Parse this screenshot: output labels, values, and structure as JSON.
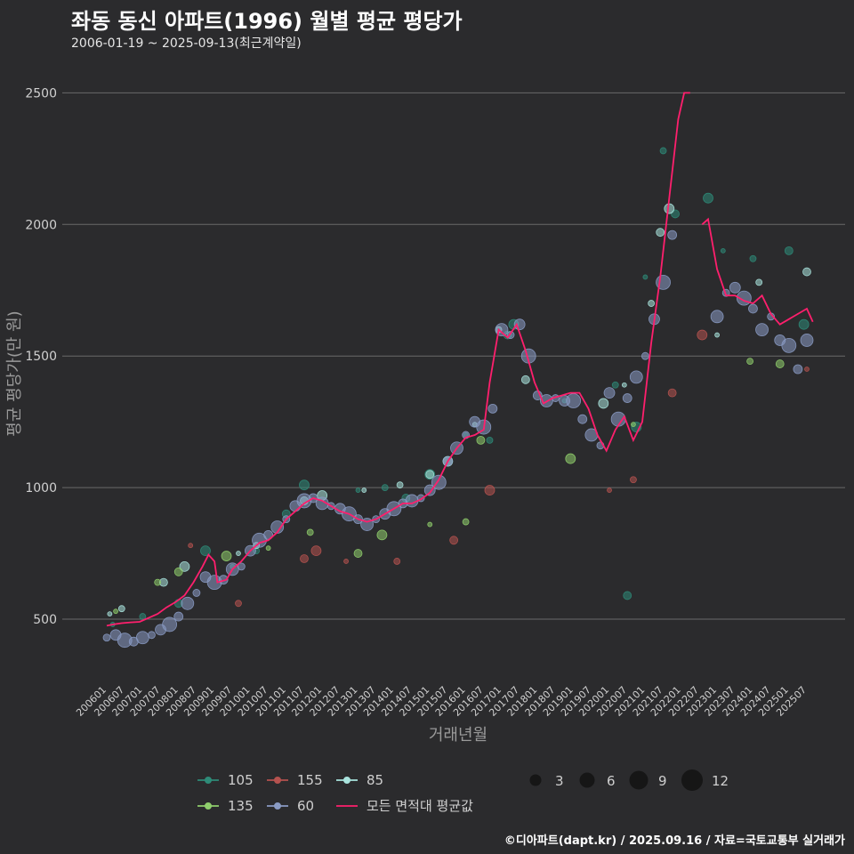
{
  "header": {
    "title": "좌동 동신 아파트(1996) 월별 평균 평당가",
    "subtitle": "2006-01-19 ~ 2025-09-13(최근계약일)"
  },
  "caption": "©디아파트(dapt.kr) / 2025.09.16 / 자료=국토교통부 실거래가",
  "colors": {
    "background": "#2b2b2d",
    "grid": "#6a6a6a",
    "s105": "#2e8b78",
    "s135": "#8fce6c",
    "s155": "#b5524f",
    "s60": "#8a9bc4",
    "s85": "#a9e3dd",
    "avg": "#ff1f6d"
  },
  "chart_data": {
    "type": "scatter",
    "xlabel": "거래년월",
    "ylabel": "평균 평당가(만 원)",
    "ylim": [
      250,
      2650
    ],
    "yticks": [
      500,
      1000,
      1500,
      2000,
      2500
    ],
    "grid": true,
    "xticks": [
      "200601",
      "200607",
      "200701",
      "200707",
      "200801",
      "200807",
      "200901",
      "200907",
      "201001",
      "201007",
      "201101",
      "201107",
      "201201",
      "201207",
      "201301",
      "201307",
      "201401",
      "201407",
      "201501",
      "201507",
      "201601",
      "201607",
      "201701",
      "201707",
      "201801",
      "201807",
      "201901",
      "201907",
      "202001",
      "202007",
      "202101",
      "202107",
      "202201",
      "202207",
      "202301",
      "202307",
      "202401",
      "202407",
      "202501",
      "202507"
    ],
    "legend": {
      "placement": "bottom",
      "series_labels": [
        "105",
        "155",
        "85",
        "135",
        "60",
        "모든 면적대 평균값"
      ],
      "size_labels": [
        "3",
        "6",
        "9",
        "12"
      ],
      "size_values": [
        3,
        6,
        9,
        12
      ]
    },
    "series": [
      {
        "name": "105",
        "points": [
          [
            "200603",
            480
          ],
          [
            "200701",
            510
          ],
          [
            "200801",
            560
          ],
          [
            "200810",
            760
          ],
          [
            "200907",
            700
          ],
          [
            "201003",
            760
          ],
          [
            "201101",
            900
          ],
          [
            "201107",
            1010
          ],
          [
            "201301",
            990
          ],
          [
            "201310",
            1000
          ],
          [
            "201405",
            960
          ],
          [
            "201501",
            1050
          ],
          [
            "201601",
            1200
          ],
          [
            "201609",
            1180
          ],
          [
            "201703",
            1580
          ],
          [
            "201705",
            1620
          ],
          [
            "201810",
            1330
          ],
          [
            "202003",
            1390
          ],
          [
            "202007",
            590
          ],
          [
            "202010",
            1230
          ],
          [
            "202101",
            1800
          ],
          [
            "202107",
            2280
          ],
          [
            "202111",
            2040
          ],
          [
            "202210",
            2100
          ],
          [
            "202303",
            1900
          ],
          [
            "202401",
            1870
          ],
          [
            "202501",
            1900
          ],
          [
            "202506",
            1620
          ]
        ]
      },
      {
        "name": "155",
        "points": [
          [
            "200805",
            780
          ],
          [
            "200909",
            560
          ],
          [
            "201107",
            730
          ],
          [
            "201111",
            760
          ],
          [
            "201209",
            720
          ],
          [
            "201402",
            720
          ],
          [
            "201509",
            800
          ],
          [
            "201609",
            990
          ],
          [
            "202001",
            990
          ],
          [
            "202009",
            1030
          ],
          [
            "202110",
            1360
          ],
          [
            "202208",
            1580
          ],
          [
            "202507",
            1450
          ]
        ]
      },
      {
        "name": "85",
        "points": [
          [
            "200602",
            520
          ],
          [
            "200606",
            540
          ],
          [
            "200708",
            640
          ],
          [
            "200803",
            700
          ],
          [
            "200909",
            750
          ],
          [
            "201003",
            780
          ],
          [
            "201107",
            950
          ],
          [
            "201201",
            970
          ],
          [
            "201303",
            990
          ],
          [
            "201403",
            1010
          ],
          [
            "201501",
            1050
          ],
          [
            "201507",
            1100
          ],
          [
            "201604",
            1240
          ],
          [
            "201612",
            1600
          ],
          [
            "201709",
            1410
          ],
          [
            "201911",
            1320
          ],
          [
            "202006",
            1390
          ],
          [
            "202103",
            1700
          ],
          [
            "202106",
            1970
          ],
          [
            "202109",
            2060
          ],
          [
            "202301",
            1580
          ],
          [
            "202403",
            1780
          ],
          [
            "202507",
            1820
          ]
        ]
      },
      {
        "name": "135",
        "points": [
          [
            "200604",
            530
          ],
          [
            "200706",
            640
          ],
          [
            "200801",
            680
          ],
          [
            "200905",
            740
          ],
          [
            "201007",
            770
          ],
          [
            "201109",
            830
          ],
          [
            "201301",
            750
          ],
          [
            "201309",
            820
          ],
          [
            "201501",
            860
          ],
          [
            "201601",
            870
          ],
          [
            "201606",
            1180
          ],
          [
            "201812",
            1110
          ],
          [
            "202009",
            1240
          ],
          [
            "202312",
            1480
          ],
          [
            "202410",
            1470
          ]
        ]
      },
      {
        "name": "60",
        "points": [
          [
            "200601",
            430
          ],
          [
            "200604",
            440
          ],
          [
            "200607",
            420
          ],
          [
            "200610",
            415
          ],
          [
            "200701",
            430
          ],
          [
            "200704",
            440
          ],
          [
            "200707",
            460
          ],
          [
            "200710",
            480
          ],
          [
            "200801",
            510
          ],
          [
            "200804",
            560
          ],
          [
            "200807",
            600
          ],
          [
            "200810",
            660
          ],
          [
            "200901",
            640
          ],
          [
            "200904",
            650
          ],
          [
            "200907",
            690
          ],
          [
            "200910",
            700
          ],
          [
            "201001",
            760
          ],
          [
            "201004",
            800
          ],
          [
            "201007",
            820
          ],
          [
            "201010",
            850
          ],
          [
            "201101",
            880
          ],
          [
            "201104",
            930
          ],
          [
            "201107",
            950
          ],
          [
            "201110",
            960
          ],
          [
            "201201",
            940
          ],
          [
            "201204",
            930
          ],
          [
            "201207",
            920
          ],
          [
            "201210",
            900
          ],
          [
            "201301",
            880
          ],
          [
            "201304",
            860
          ],
          [
            "201307",
            880
          ],
          [
            "201310",
            900
          ],
          [
            "201401",
            920
          ],
          [
            "201404",
            940
          ],
          [
            "201407",
            950
          ],
          [
            "201410",
            960
          ],
          [
            "201501",
            990
          ],
          [
            "201504",
            1020
          ],
          [
            "201507",
            1100
          ],
          [
            "201510",
            1150
          ],
          [
            "201601",
            1200
          ],
          [
            "201604",
            1250
          ],
          [
            "201607",
            1230
          ],
          [
            "201610",
            1300
          ],
          [
            "201701",
            1600
          ],
          [
            "201704",
            1580
          ],
          [
            "201707",
            1620
          ],
          [
            "201710",
            1500
          ],
          [
            "201801",
            1350
          ],
          [
            "201804",
            1330
          ],
          [
            "201807",
            1340
          ],
          [
            "201810",
            1330
          ],
          [
            "201901",
            1330
          ],
          [
            "201904",
            1260
          ],
          [
            "201907",
            1200
          ],
          [
            "201910",
            1160
          ],
          [
            "202001",
            1360
          ],
          [
            "202004",
            1260
          ],
          [
            "202007",
            1340
          ],
          [
            "202010",
            1420
          ],
          [
            "202101",
            1500
          ],
          [
            "202104",
            1640
          ],
          [
            "202107",
            1780
          ],
          [
            "202110",
            1960
          ],
          [
            "202301",
            1650
          ],
          [
            "202304",
            1740
          ],
          [
            "202307",
            1760
          ],
          [
            "202310",
            1720
          ],
          [
            "202401",
            1680
          ],
          [
            "202404",
            1600
          ],
          [
            "202407",
            1650
          ],
          [
            "202410",
            1560
          ],
          [
            "202501",
            1540
          ],
          [
            "202504",
            1450
          ],
          [
            "202507",
            1560
          ]
        ]
      }
    ],
    "average_series": {
      "name": "모든 면적대 평균값",
      "points": [
        [
          "200601",
          475
        ],
        [
          "200603",
          480
        ],
        [
          "200606",
          485
        ],
        [
          "200609",
          488
        ],
        [
          "200612",
          490
        ],
        [
          "200703",
          505
        ],
        [
          "200706",
          520
        ],
        [
          "200709",
          545
        ],
        [
          "200712",
          565
        ],
        [
          "200803",
          590
        ],
        [
          "200806",
          640
        ],
        [
          "200809",
          700
        ],
        [
          "200811",
          745
        ],
        [
          "200901",
          720
        ],
        [
          "200902",
          640
        ],
        [
          "200905",
          650
        ],
        [
          "200907",
          690
        ],
        [
          "200910",
          720
        ],
        [
          "201001",
          760
        ],
        [
          "201004",
          790
        ],
        [
          "201007",
          800
        ],
        [
          "201010",
          830
        ],
        [
          "201101",
          880
        ],
        [
          "201104",
          910
        ],
        [
          "201107",
          940
        ],
        [
          "201110",
          960
        ],
        [
          "201201",
          950
        ],
        [
          "201204",
          930
        ],
        [
          "201207",
          910
        ],
        [
          "201210",
          900
        ],
        [
          "201301",
          880
        ],
        [
          "201304",
          870
        ],
        [
          "201307",
          880
        ],
        [
          "201310",
          900
        ],
        [
          "201401",
          920
        ],
        [
          "201404",
          940
        ],
        [
          "201407",
          940
        ],
        [
          "201410",
          955
        ],
        [
          "201501",
          980
        ],
        [
          "201504",
          1030
        ],
        [
          "201507",
          1100
        ],
        [
          "201510",
          1150
        ],
        [
          "201601",
          1190
        ],
        [
          "201604",
          1200
        ],
        [
          "201607",
          1220
        ],
        [
          "201609",
          1400
        ],
        [
          "201612",
          1600
        ],
        [
          "201703",
          1570
        ],
        [
          "201706",
          1620
        ],
        [
          "201709",
          1520
        ],
        [
          "201712",
          1400
        ],
        [
          "201803",
          1320
        ],
        [
          "201806",
          1340
        ],
        [
          "201809",
          1350
        ],
        [
          "201812",
          1360
        ],
        [
          "201903",
          1360
        ],
        [
          "201906",
          1300
        ],
        [
          "201909",
          1200
        ],
        [
          "201912",
          1140
        ],
        [
          "202003",
          1220
        ],
        [
          "202006",
          1270
        ],
        [
          "202009",
          1180
        ],
        [
          "202012",
          1250
        ],
        [
          "202103",
          1550
        ],
        [
          "202106",
          1800
        ],
        [
          "202109",
          2100
        ],
        [
          "202112",
          2400
        ],
        [
          "202202",
          2500
        ],
        [
          "202204",
          2500
        ],
        [
          "202208",
          2000
        ],
        [
          "202210",
          2020
        ],
        [
          "202301",
          1830
        ],
        [
          "202304",
          1730
        ],
        [
          "202307",
          1730
        ],
        [
          "202310",
          1710
        ],
        [
          "202401",
          1700
        ],
        [
          "202404",
          1730
        ],
        [
          "202407",
          1660
        ],
        [
          "202410",
          1620
        ],
        [
          "202501",
          1640
        ],
        [
          "202504",
          1660
        ],
        [
          "202507",
          1680
        ],
        [
          "202509",
          1630
        ]
      ]
    }
  }
}
